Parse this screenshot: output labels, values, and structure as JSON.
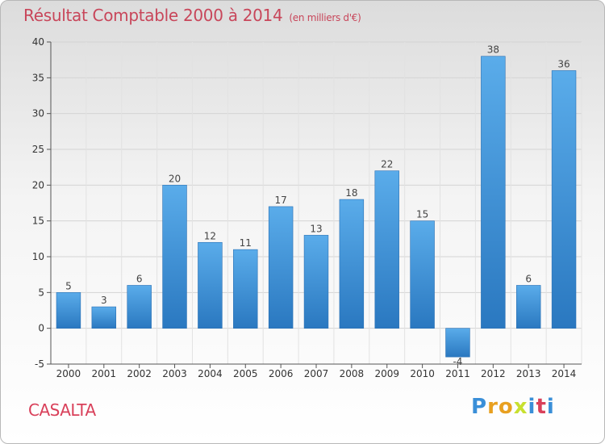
{
  "chart_data": {
    "type": "bar",
    "title": "Résultat Comptable 2000 à 2014",
    "subtitle": "(en milliers d'€)",
    "categories": [
      "2000",
      "2001",
      "2002",
      "2003",
      "2004",
      "2005",
      "2006",
      "2007",
      "2008",
      "2009",
      "2010",
      "2011",
      "2012",
      "2013",
      "2014"
    ],
    "values": [
      5,
      3,
      6,
      20,
      12,
      11,
      17,
      13,
      18,
      22,
      15,
      -4,
      38,
      6,
      36
    ],
    "ylim": [
      -5,
      40
    ],
    "yticks": [
      -5,
      0,
      5,
      10,
      15,
      20,
      25,
      30,
      35,
      40
    ],
    "grid": true,
    "bar_color": "#4a9be0"
  },
  "footer": {
    "commune": "CASALTA",
    "logo_letters": [
      "P",
      "r",
      "o",
      "x",
      "i",
      "t",
      "i"
    ],
    "logo_colors": [
      "#3a8fd8",
      "#e8a020",
      "#e8a020",
      "#c8e030",
      "#3a8fd8",
      "#d9405a",
      "#3a8fd8"
    ]
  }
}
